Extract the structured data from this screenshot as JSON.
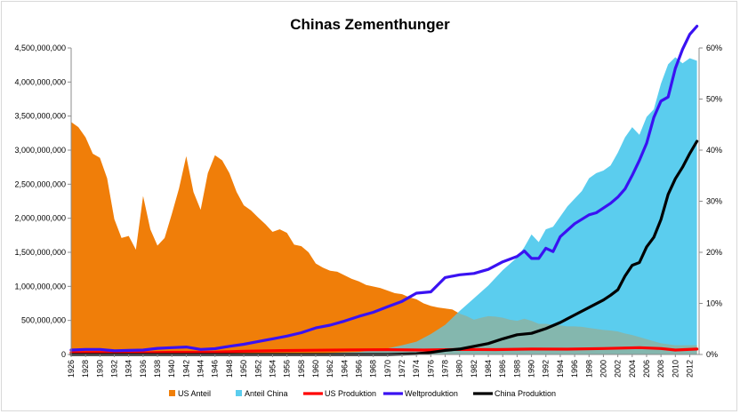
{
  "chart_data": {
    "type": "area",
    "title": "Chinas Zementhunger",
    "xlabel": "",
    "ylabel": "",
    "x_ticks": [
      "1926",
      "1928",
      "1930",
      "1932",
      "1934",
      "1936",
      "1938",
      "1940",
      "1942",
      "1944",
      "1946",
      "1948",
      "1950",
      "1952",
      "1954",
      "1956",
      "1958",
      "1960",
      "1962",
      "1964",
      "1966",
      "1968",
      "1970",
      "1972",
      "1974",
      "1976",
      "1978",
      "1980",
      "1982",
      "1984",
      "1986",
      "1988",
      "1990",
      "1992",
      "1994",
      "1996",
      "1998",
      "2000",
      "2002",
      "2004",
      "2006",
      "2008",
      "2010",
      "2012"
    ],
    "y_left_ticks": [
      "0",
      "500,000,000",
      "1,000,000,000",
      "1,500,000,000",
      "2,000,000,000",
      "2,500,000,000",
      "3,000,000,000",
      "3,500,000,000",
      "4,000,000,000",
      "4,500,000,000"
    ],
    "y_right_ticks": [
      "0%",
      "10%",
      "20%",
      "30%",
      "40%",
      "50%",
      "60%"
    ],
    "ylim_left": [
      0,
      4500000000
    ],
    "ylim_right": [
      0,
      0.6
    ],
    "xlim": [
      1926,
      2013
    ],
    "legend_position": "bottom",
    "series": [
      {
        "name": "US Anteil",
        "axis": "right",
        "kind": "area",
        "color": "#f07f09",
        "x": [
          1926,
          1927,
          1928,
          1929,
          1930,
          1931,
          1932,
          1933,
          1934,
          1935,
          1936,
          1937,
          1938,
          1939,
          1940,
          1941,
          1942,
          1943,
          1944,
          1945,
          1946,
          1947,
          1948,
          1949,
          1950,
          1951,
          1952,
          1953,
          1954,
          1955,
          1956,
          1957,
          1958,
          1959,
          1960,
          1961,
          1962,
          1963,
          1964,
          1965,
          1966,
          1967,
          1968,
          1969,
          1970,
          1971,
          1972,
          1973,
          1974,
          1975,
          1976,
          1977,
          1978,
          1979,
          1980,
          1981,
          1982,
          1983,
          1984,
          1985,
          1986,
          1987,
          1988,
          1989,
          1990,
          1991,
          1992,
          1993,
          1994,
          1995,
          1996,
          1997,
          1998,
          1999,
          2000,
          2001,
          2002,
          2003,
          2004,
          2005,
          2006,
          2007,
          2008,
          2009,
          2010,
          2011,
          2012,
          2013
        ],
        "y": [
          0.455,
          0.445,
          0.425,
          0.393,
          0.385,
          0.345,
          0.265,
          0.228,
          0.232,
          0.205,
          0.31,
          0.245,
          0.213,
          0.228,
          0.275,
          0.325,
          0.388,
          0.318,
          0.283,
          0.355,
          0.39,
          0.38,
          0.355,
          0.318,
          0.292,
          0.282,
          0.268,
          0.255,
          0.24,
          0.245,
          0.238,
          0.215,
          0.212,
          0.2,
          0.178,
          0.17,
          0.164,
          0.162,
          0.155,
          0.148,
          0.143,
          0.136,
          0.133,
          0.13,
          0.125,
          0.12,
          0.118,
          0.112,
          0.108,
          0.1,
          0.095,
          0.092,
          0.09,
          0.088,
          0.08,
          0.075,
          0.068,
          0.072,
          0.075,
          0.074,
          0.072,
          0.068,
          0.066,
          0.07,
          0.066,
          0.06,
          0.06,
          0.058,
          0.057,
          0.055,
          0.055,
          0.054,
          0.052,
          0.05,
          0.048,
          0.047,
          0.045,
          0.041,
          0.038,
          0.034,
          0.03,
          0.026,
          0.022,
          0.02,
          0.018,
          0.018,
          0.018,
          0.018
        ]
      },
      {
        "name": "Anteil China",
        "axis": "right",
        "kind": "area",
        "color": "#5bcdee",
        "x": [
          1926,
          1950,
          1960,
          1966,
          1968,
          1970,
          1972,
          1974,
          1976,
          1978,
          1980,
          1982,
          1984,
          1986,
          1988,
          1989,
          1990,
          1991,
          1992,
          1993,
          1994,
          1995,
          1996,
          1997,
          1998,
          1999,
          2000,
          2001,
          2002,
          2003,
          2004,
          2005,
          2006,
          2007,
          2008,
          2009,
          2010,
          2011,
          2012,
          2013
        ],
        "y": [
          0,
          0,
          0.002,
          0.005,
          0.008,
          0.012,
          0.018,
          0.025,
          0.04,
          0.058,
          0.085,
          0.11,
          0.135,
          0.165,
          0.19,
          0.21,
          0.235,
          0.22,
          0.245,
          0.25,
          0.27,
          0.29,
          0.305,
          0.32,
          0.345,
          0.355,
          0.36,
          0.37,
          0.395,
          0.425,
          0.445,
          0.43,
          0.465,
          0.48,
          0.53,
          0.568,
          0.582,
          0.57,
          0.58,
          0.575
        ]
      },
      {
        "name": "US  Produktion",
        "axis": "left",
        "kind": "line",
        "color": "#ff0000",
        "x": [
          1926,
          1930,
          1934,
          1940,
          1946,
          1950,
          1955,
          1960,
          1965,
          1970,
          1975,
          1980,
          1985,
          1990,
          1995,
          2000,
          2005,
          2008,
          2010,
          2013
        ],
        "y": [
          28000000,
          30000000,
          22000000,
          32000000,
          35000000,
          48000000,
          58000000,
          62000000,
          68000000,
          70000000,
          65000000,
          75000000,
          72000000,
          80000000,
          78000000,
          88000000,
          100000000,
          88000000,
          65000000,
          80000000
        ]
      },
      {
        "name": "Weltproduktion",
        "axis": "left",
        "kind": "line",
        "color": "#3a12f2",
        "x": [
          1926,
          1928,
          1930,
          1932,
          1934,
          1936,
          1938,
          1940,
          1942,
          1944,
          1946,
          1948,
          1950,
          1952,
          1954,
          1956,
          1958,
          1960,
          1962,
          1964,
          1966,
          1968,
          1970,
          1972,
          1974,
          1976,
          1978,
          1980,
          1982,
          1984,
          1986,
          1988,
          1989,
          1990,
          1991,
          1992,
          1993,
          1994,
          1996,
          1998,
          1999,
          2000,
          2001,
          2002,
          2003,
          2004,
          2005,
          2006,
          2007,
          2008,
          2009,
          2010,
          2011,
          2012,
          2013
        ],
        "y": [
          65000000,
          75000000,
          75000000,
          55000000,
          60000000,
          65000000,
          90000000,
          100000000,
          110000000,
          75000000,
          85000000,
          120000000,
          150000000,
          190000000,
          230000000,
          270000000,
          320000000,
          390000000,
          430000000,
          490000000,
          560000000,
          620000000,
          700000000,
          780000000,
          900000000,
          920000000,
          1130000000,
          1170000000,
          1190000000,
          1250000000,
          1360000000,
          1440000000,
          1520000000,
          1410000000,
          1410000000,
          1560000000,
          1510000000,
          1730000000,
          1920000000,
          2050000000,
          2080000000,
          2150000000,
          2220000000,
          2310000000,
          2430000000,
          2630000000,
          2850000000,
          3100000000,
          3480000000,
          3720000000,
          3780000000,
          4200000000,
          4480000000,
          4700000000,
          4820000000
        ]
      },
      {
        "name": "China Produktion",
        "axis": "left",
        "kind": "line",
        "color": "#000000",
        "x": [
          1926,
          1960,
          1970,
          1974,
          1976,
          1978,
          1980,
          1982,
          1984,
          1986,
          1988,
          1990,
          1992,
          1994,
          1996,
          1998,
          2000,
          2001,
          2002,
          2003,
          2004,
          2005,
          2006,
          2007,
          2008,
          2009,
          2010,
          2011,
          2012,
          2013
        ],
        "y": [
          0,
          0,
          0,
          10000000,
          30000000,
          60000000,
          80000000,
          120000000,
          160000000,
          230000000,
          290000000,
          310000000,
          380000000,
          470000000,
          580000000,
          690000000,
          800000000,
          870000000,
          950000000,
          1150000000,
          1310000000,
          1350000000,
          1580000000,
          1720000000,
          1980000000,
          2350000000,
          2580000000,
          2750000000,
          2950000000,
          3130000000
        ]
      }
    ]
  }
}
